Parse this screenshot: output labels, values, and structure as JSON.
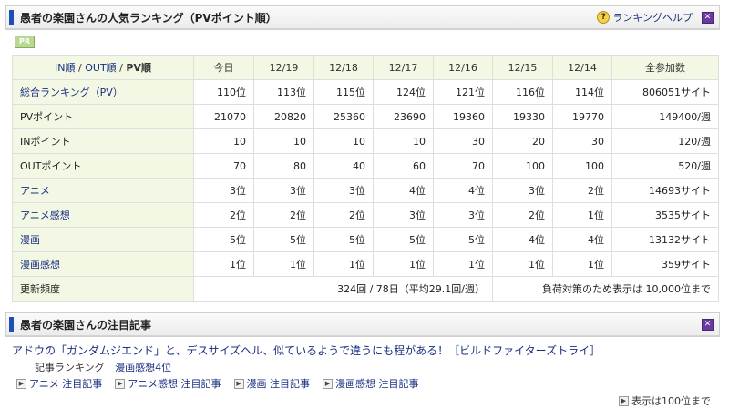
{
  "ranking_panel": {
    "title": "愚者の楽園さんの人気ランキング（PVポイント順）",
    "help_label": "ランキングヘルプ",
    "pr_label": "PR",
    "sort": {
      "in": "IN順",
      "sep1": " / ",
      "out": "OUT順",
      "sep2": " / ",
      "pv": "PV順"
    },
    "columns": [
      "今日",
      "12/19",
      "12/18",
      "12/17",
      "12/16",
      "12/15",
      "12/14",
      "全参加数"
    ],
    "rows": [
      {
        "label": "総合ランキング（PV）",
        "link": true,
        "values": [
          "110位",
          "113位",
          "115位",
          "124位",
          "121位",
          "116位",
          "114位"
        ],
        "total": "806051サイト"
      },
      {
        "label": "PVポイント",
        "link": false,
        "values": [
          "21070",
          "20820",
          "25360",
          "23690",
          "19360",
          "19330",
          "19770"
        ],
        "total": "149400/週"
      },
      {
        "label": "INポイント",
        "link": false,
        "values": [
          "10",
          "10",
          "10",
          "10",
          "30",
          "20",
          "30"
        ],
        "total": "120/週"
      },
      {
        "label": "OUTポイント",
        "link": false,
        "values": [
          "70",
          "80",
          "40",
          "60",
          "70",
          "100",
          "100"
        ],
        "total": "520/週"
      },
      {
        "label": "アニメ",
        "link": true,
        "values": [
          "3位",
          "3位",
          "3位",
          "4位",
          "4位",
          "3位",
          "2位"
        ],
        "total": "14693サイト"
      },
      {
        "label": "アニメ感想",
        "link": true,
        "values": [
          "2位",
          "2位",
          "2位",
          "3位",
          "3位",
          "2位",
          "1位"
        ],
        "total": "3535サイト"
      },
      {
        "label": "漫画",
        "link": true,
        "values": [
          "5位",
          "5位",
          "5位",
          "5位",
          "5位",
          "4位",
          "4位"
        ],
        "total": "13132サイト"
      },
      {
        "label": "漫画感想",
        "link": true,
        "values": [
          "1位",
          "1位",
          "1位",
          "1位",
          "1位",
          "1位",
          "1位"
        ],
        "total": "359サイト"
      }
    ],
    "update": {
      "label": "更新頻度",
      "value": "324回 / 78日（平均29.1回/週）",
      "note": "負荷対策のため表示は 10,000位まで"
    }
  },
  "article_panel": {
    "title": "愚者の楽園さんの注目記事",
    "article_title": "アドウの「ガンダムジエンド」と、デスサイズヘル、似ているようで違うにも程がある！［ビルドファイターズトライ］",
    "article_rank_label": "記事ランキング",
    "article_rank_value": "漫画感想4位",
    "tags": [
      "アニメ 注目記事",
      "アニメ感想 注目記事",
      "漫画 注目記事",
      "漫画感想 注目記事"
    ],
    "more_label": "表示は100位まで"
  },
  "icons": {
    "help": "help-question-icon",
    "close": "close-x-icon",
    "arrow": "arrow-right-icon"
  },
  "colors": {
    "accent": "#1d4fb8",
    "header_bg": "#f3f8e5",
    "link": "#1a2f80",
    "close": "#6b3aa0"
  }
}
